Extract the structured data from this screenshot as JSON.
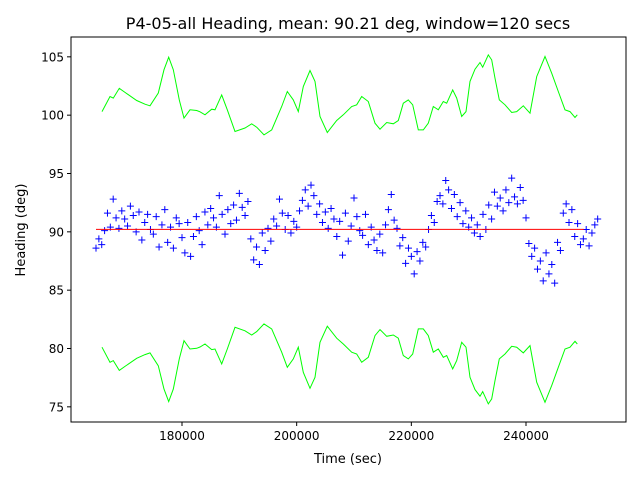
{
  "chart_data": {
    "type": "scatter",
    "title": "P4-05-all Heading, mean: 90.21 deg, window=120 secs",
    "xlabel": "Time (sec)",
    "ylabel": "Heading (deg)",
    "xlim": [
      160640,
      257440
    ],
    "ylim": [
      73.7,
      106.7
    ],
    "xticks": [
      180000,
      200000,
      220000,
      240000
    ],
    "yticks": [
      75,
      80,
      85,
      90,
      95,
      100,
      105
    ],
    "grid": false,
    "mean": 90.21,
    "mean_range": [
      165000,
      250100
    ],
    "colors": {
      "points": "#0000ff",
      "mean": "#ff0000",
      "band": "#00ff00"
    },
    "points": {
      "t_start": 165000,
      "t_step": 500,
      "values": [
        88.6,
        89.4,
        88.9,
        90.1,
        91.6,
        90.4,
        92.8,
        91.2,
        90.3,
        91.8,
        91.1,
        90.5,
        92.2,
        91.4,
        90.0,
        91.7,
        89.3,
        90.8,
        91.5,
        90.2,
        89.8,
        91.3,
        88.7,
        90.6,
        91.9,
        89.1,
        90.4,
        88.6,
        91.2,
        90.7,
        89.5,
        88.2,
        90.8,
        87.9,
        89.6,
        91.3,
        90.1,
        88.9,
        91.7,
        90.6,
        92.0,
        91.2,
        90.4,
        93.1,
        91.5,
        89.8,
        91.9,
        90.7,
        92.3,
        91.0,
        93.3,
        92.1,
        91.4,
        92.6,
        89.4,
        87.6,
        88.7,
        87.2,
        89.9,
        88.4,
        90.3,
        89.2,
        91.1,
        90.5,
        92.8,
        91.6,
        90.2,
        91.4,
        89.9,
        90.9,
        90.4,
        91.8,
        92.7,
        93.6,
        92.2,
        94.0,
        93.1,
        91.5,
        92.4,
        90.8,
        91.7,
        90.3,
        92.0,
        91.1,
        89.6,
        90.9,
        88.0,
        91.6,
        89.2,
        90.5,
        92.9,
        91.3,
        90.1,
        89.7,
        91.5,
        88.9,
        90.4,
        89.3,
        88.4,
        89.8,
        88.2,
        90.6,
        91.9,
        93.2,
        91.0,
        90.3,
        88.8,
        89.5,
        87.3,
        88.6,
        87.9,
        86.4,
        88.3,
        87.5,
        89.1,
        88.7,
        90.2,
        91.4,
        90.8,
        92.6,
        93.1,
        92.4,
        94.4,
        93.6,
        92.0,
        93.2,
        91.3,
        92.5,
        90.7,
        91.8,
        90.4,
        91.2,
        89.9,
        90.6,
        89.6,
        91.5,
        90.2,
        92.3,
        91.1,
        93.4,
        92.2,
        92.9,
        91.8,
        93.6,
        92.5,
        94.6,
        93.0,
        92.4,
        93.8,
        92.7,
        91.2,
        89.0,
        87.9,
        88.6,
        86.8,
        87.5,
        85.8,
        88.2,
        86.4,
        87.2,
        85.6,
        89.1,
        88.4,
        91.6,
        92.4,
        90.8,
        91.9,
        89.6,
        90.7,
        88.9,
        89.4,
        90.2,
        88.8,
        89.9,
        90.6,
        91.1
      ]
    },
    "band": {
      "t": [
        166050,
        167440,
        168020,
        169070,
        170060,
        172100,
        173550,
        174420,
        175870,
        176860,
        177680,
        178480,
        179530,
        180350,
        181400,
        182560,
        183140,
        184010,
        185180,
        185760,
        186920,
        187900,
        189240,
        190990,
        192160,
        193030,
        194300,
        195640,
        197390,
        198360,
        199410,
        200280,
        201160,
        202320,
        203200,
        204070,
        205340,
        206980,
        208130,
        209600,
        210470,
        211340,
        212490,
        213660,
        214530,
        215700,
        216850,
        217720,
        218600,
        219470,
        220230,
        221210,
        222080,
        222950,
        223830,
        224700,
        225570,
        226160,
        227210,
        227910,
        228780,
        229530,
        230230,
        231100,
        231970,
        232440,
        233420,
        234010,
        234590,
        235340,
        236330,
        237500,
        238370,
        239520,
        240690,
        241860,
        243310,
        244480,
        245630,
        246800,
        247670,
        248540,
        248940
      ],
      "upper": [
        100.31,
        101.6,
        101.46,
        102.3,
        101.95,
        101.26,
        100.94,
        100.8,
        101.9,
        103.9,
        104.97,
        103.9,
        101.3,
        99.75,
        100.46,
        100.4,
        100.29,
        100.03,
        100.51,
        100.46,
        101.74,
        100.46,
        98.6,
        98.9,
        99.26,
        98.97,
        98.31,
        98.74,
        100.74,
        102.03,
        101.31,
        100.31,
        102.46,
        103.83,
        102.89,
        99.89,
        98.51,
        99.54,
        100.03,
        100.74,
        100.89,
        101.6,
        101.17,
        99.31,
        98.8,
        99.37,
        99.26,
        99.54,
        101.03,
        101.31,
        100.89,
        98.74,
        98.74,
        99.31,
        100.74,
        100.46,
        101.17,
        101.03,
        102.17,
        101.46,
        99.89,
        100.31,
        102.89,
        103.94,
        104.51,
        104.11,
        105.17,
        104.74,
        103.17,
        101.31,
        100.89,
        100.23,
        100.31,
        100.8,
        100.17,
        103.31,
        105.03,
        103.6,
        102.03,
        100.46,
        100.31,
        99.8,
        100.03
      ]
    }
  }
}
